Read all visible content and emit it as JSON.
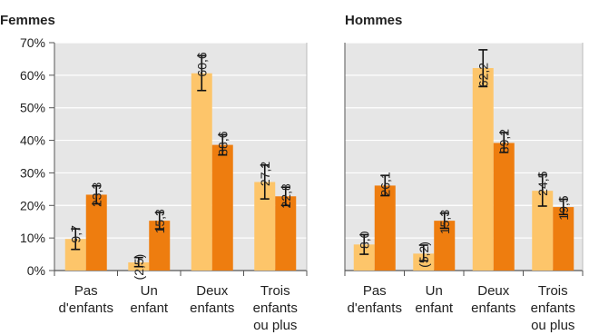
{
  "colors": {
    "series_light": "#FDC56A",
    "series_dark": "#EE7D0F",
    "plot_bg": "#E6E6E6",
    "grid": "#ffffff",
    "axis": "#555555",
    "text": "#222222"
  },
  "chart_data": [
    {
      "type": "bar",
      "title": "Femmes",
      "ylim": [
        0,
        70
      ],
      "yticks": [
        "0%",
        "10%",
        "20%",
        "30%",
        "40%",
        "50%",
        "60%",
        "70%"
      ],
      "categories": [
        [
          "Pas",
          "d'enfants"
        ],
        [
          "Un",
          "enfant"
        ],
        [
          "Deux",
          "enfants"
        ],
        [
          "Trois",
          "enfants",
          "ou plus"
        ]
      ],
      "series": [
        {
          "values": [
            9.7,
            2.5,
            60.6,
            27.2
          ],
          "labels": [
            "9,7",
            "(2,5)",
            "60,6",
            "27,2"
          ],
          "err_low": [
            6.5,
            1.2,
            55.3,
            22.0
          ],
          "err_high": [
            12.8,
            4.0,
            66.0,
            32.4
          ]
        },
        {
          "values": [
            23.3,
            15.3,
            38.6,
            22.8
          ],
          "labels": [
            "23,3",
            "15,3",
            "38,6",
            "22,8"
          ],
          "err_low": [
            20.5,
            12.8,
            35.5,
            20.0
          ],
          "err_high": [
            26.0,
            17.8,
            41.7,
            25.6
          ]
        }
      ]
    },
    {
      "type": "bar",
      "title": "Hommes",
      "ylim": [
        0,
        70
      ],
      "categories": [
        [
          "Pas",
          "d'enfants"
        ],
        [
          "Un",
          "enfant"
        ],
        [
          "Deux",
          "enfants"
        ],
        [
          "Trois",
          "enfants",
          "ou plus"
        ]
      ],
      "series": [
        {
          "values": [
            8.0,
            5.2,
            62.2,
            24.5
          ],
          "labels": [
            "8,0",
            "(5,2)",
            "62,2",
            "24,5"
          ],
          "err_low": [
            5.0,
            3.0,
            56.5,
            19.8
          ],
          "err_high": [
            11.0,
            7.8,
            67.8,
            29.4
          ]
        },
        {
          "values": [
            26.1,
            15.3,
            39.2,
            19.5
          ],
          "labels": [
            "26,1",
            "15,3",
            "39,2",
            "19,5"
          ],
          "err_low": [
            23.0,
            13.0,
            36.3,
            17.2
          ],
          "err_high": [
            29.2,
            17.6,
            42.4,
            21.9
          ]
        }
      ]
    }
  ]
}
